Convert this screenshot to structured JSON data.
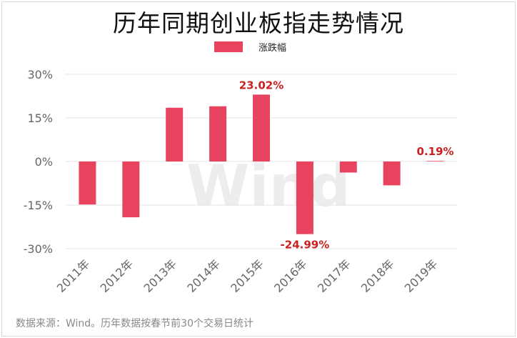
{
  "title": "历年同期创业板指走势情况",
  "legend_label": "涨跌幅",
  "source": "数据来源：Wind。历年数据按春节前30个交易日统计",
  "watermark": "Wind",
  "colors": {
    "bar": "#e8435f",
    "label": "#cc1f1f",
    "grid": "#e6e6e6",
    "axis_text": "#666666"
  },
  "chart_data": {
    "type": "bar",
    "title": "历年同期创业板指走势情况",
    "categories": [
      "2011年",
      "2012年",
      "2013年",
      "2014年",
      "2015年",
      "2016年",
      "2017年",
      "2018年",
      "2019年"
    ],
    "series": [
      {
        "name": "涨跌幅",
        "values": [
          -14.8,
          -19.2,
          18.5,
          19.0,
          23.02,
          -24.99,
          -3.8,
          -8.2,
          0.19
        ]
      }
    ],
    "data_labels": {
      "4": "23.02%",
      "5": "-24.99%",
      "8": "0.19%"
    },
    "yticks": [
      30,
      15,
      0,
      -15,
      -30
    ],
    "ytick_labels": [
      "30%",
      "15%",
      "0%",
      "-15%",
      "-30%"
    ],
    "ylim": [
      -30,
      30
    ],
    "grid": true,
    "legend_position": "top"
  }
}
